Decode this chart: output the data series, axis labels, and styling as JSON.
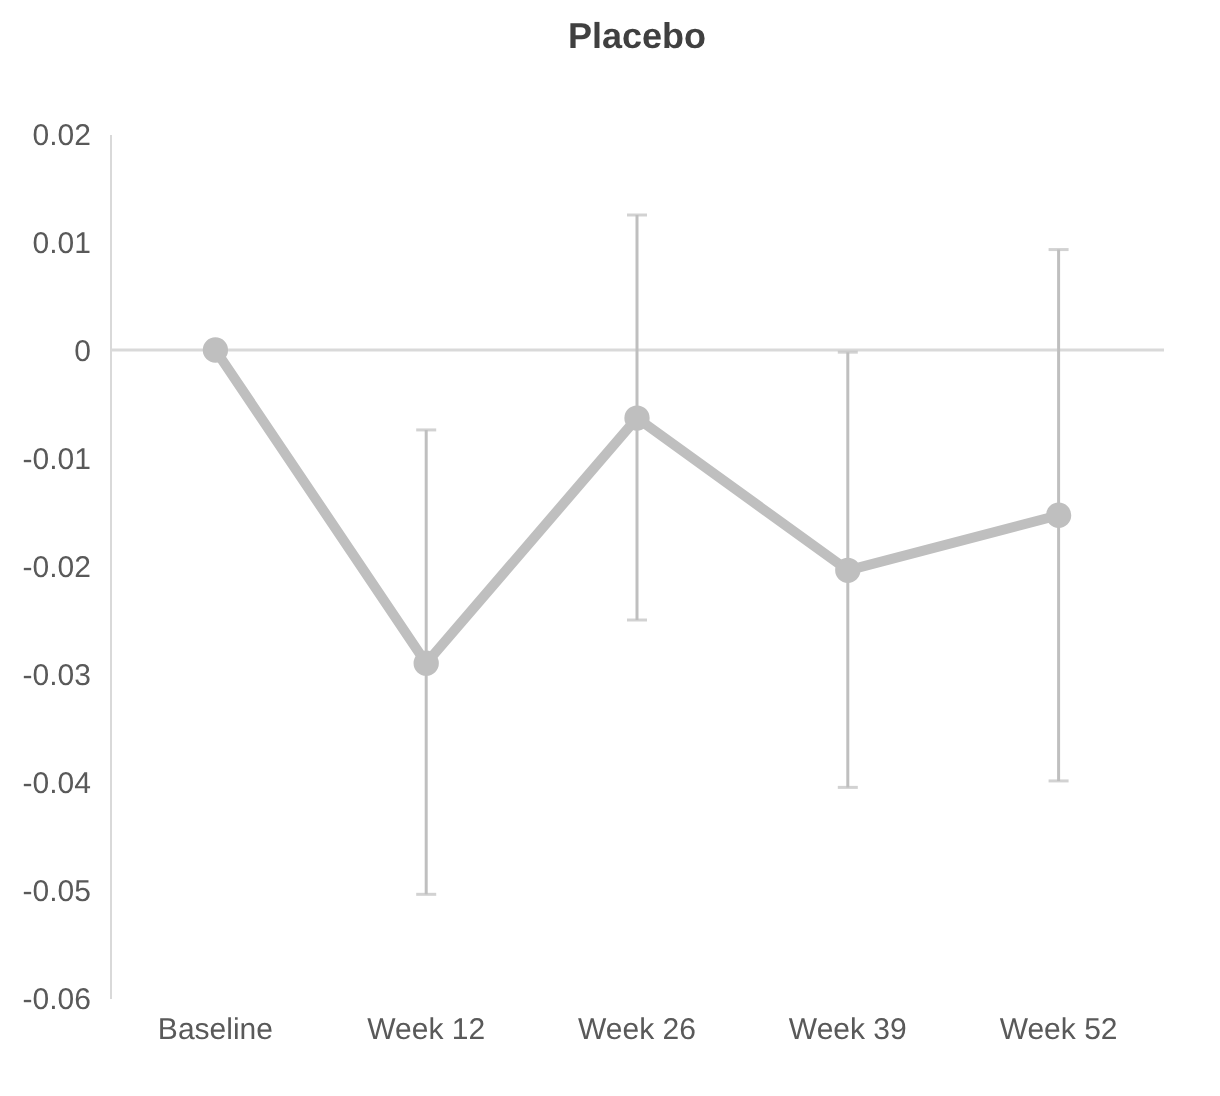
{
  "chart_data": {
    "type": "line",
    "title": "Placebo",
    "categories": [
      "Baseline",
      "Week 12",
      "Week 26",
      "Week 39",
      "Week 52"
    ],
    "series": [
      {
        "color": "#bfbfbf",
        "values": [
          0,
          -0.029,
          -0.0063,
          -0.0204,
          -0.0153
        ],
        "errors": [
          null,
          [
            -0.0504,
            -0.0074
          ],
          [
            -0.025,
            0.0125
          ],
          [
            -0.0405,
            -0.0002
          ],
          [
            -0.0399,
            0.0093
          ]
        ]
      }
    ],
    "ylim": [
      -0.06,
      0.02
    ],
    "yticks": [
      -0.06,
      -0.05,
      -0.04,
      -0.03,
      -0.02,
      -0.01,
      0,
      0.01,
      0.02
    ],
    "ref_lines": [
      {
        "axis": "y",
        "value": 0,
        "color": "#d9d9d9"
      }
    ],
    "marker": "circle",
    "line_style": "solid",
    "grid": false
  }
}
